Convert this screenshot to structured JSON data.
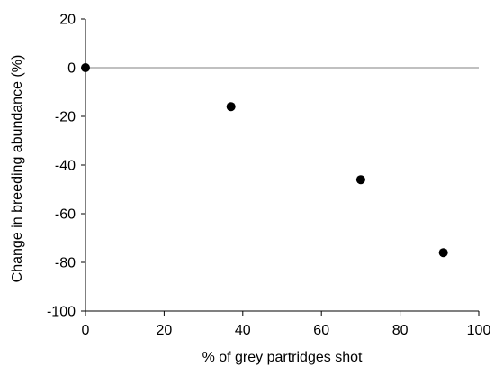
{
  "chart_data": {
    "type": "scatter",
    "title": "",
    "xlabel": "% of grey partridges shot",
    "ylabel": "Change in breeding abundance  (%)",
    "xlim": [
      0,
      100
    ],
    "ylim": [
      -100,
      20
    ],
    "xticks": [
      0,
      20,
      40,
      60,
      80,
      100
    ],
    "yticks": [
      20,
      0,
      -20,
      -40,
      -60,
      -80,
      -100
    ],
    "grid": false,
    "legend": "none",
    "reference_line_y": 0,
    "series": [
      {
        "x": [
          0,
          37,
          70,
          91
        ],
        "y": [
          0,
          -16,
          -46,
          -76
        ],
        "color": "#000000"
      }
    ],
    "axis_color": "#000000",
    "reference_line_color": "#808080"
  }
}
